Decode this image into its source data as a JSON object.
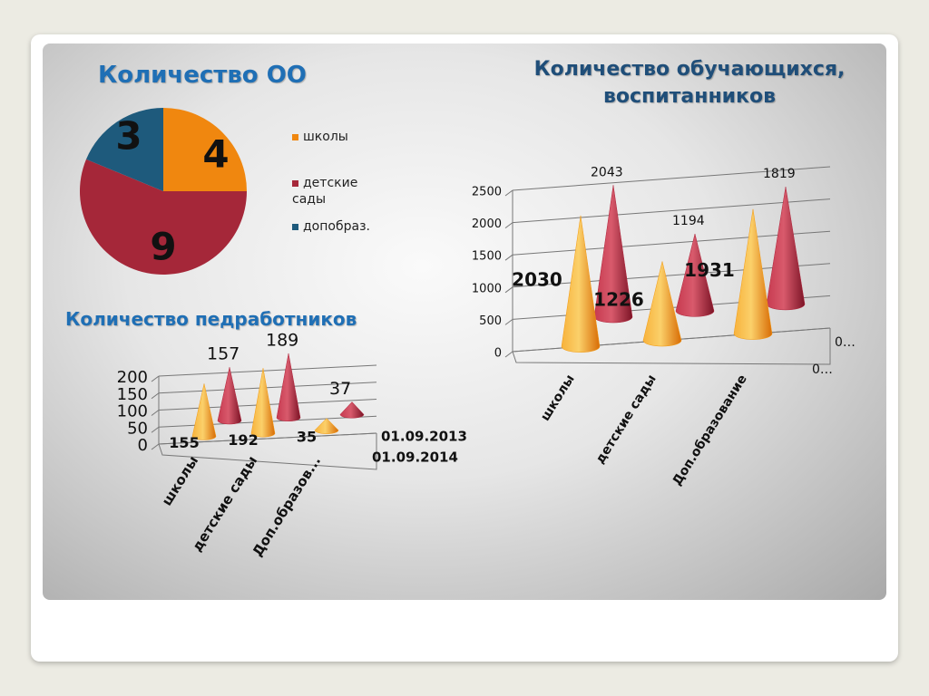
{
  "chart_data": [
    {
      "type": "pie",
      "title": "Количество ОО",
      "categories": [
        "школы",
        "детские сады",
        "допобраз."
      ],
      "values": [
        4,
        9,
        3
      ],
      "colors": [
        "#f0870f",
        "#a52739",
        "#1e5a7c"
      ]
    },
    {
      "type": "cone",
      "title": "Количество педработников",
      "categories": [
        "школы",
        "детские сады",
        "Доп.образов..."
      ],
      "series": [
        {
          "name": "01.09.2013",
          "color": "#b0233a",
          "values": [
            157,
            189,
            37
          ]
        },
        {
          "name": "01.09.2014",
          "color": "#f39a10",
          "values": [
            155,
            192,
            35
          ]
        }
      ],
      "ylim": [
        0,
        200
      ],
      "yticks": [
        0,
        50,
        100,
        150,
        200
      ],
      "grid": true
    },
    {
      "type": "cone",
      "title": "Количество обучающихся, воспитанников",
      "categories": [
        "школы",
        "детские сады",
        "Доп.образование"
      ],
      "series": [
        {
          "name": "0…",
          "color": "#b0233a",
          "values": [
            2043,
            1194,
            1819
          ]
        },
        {
          "name": "0…",
          "color": "#f39a10",
          "values": [
            2030,
            1226,
            1931
          ]
        }
      ],
      "ylim": [
        0,
        2500
      ],
      "yticks": [
        0,
        500,
        1000,
        1500,
        2000,
        2500
      ],
      "grid": true
    }
  ]
}
